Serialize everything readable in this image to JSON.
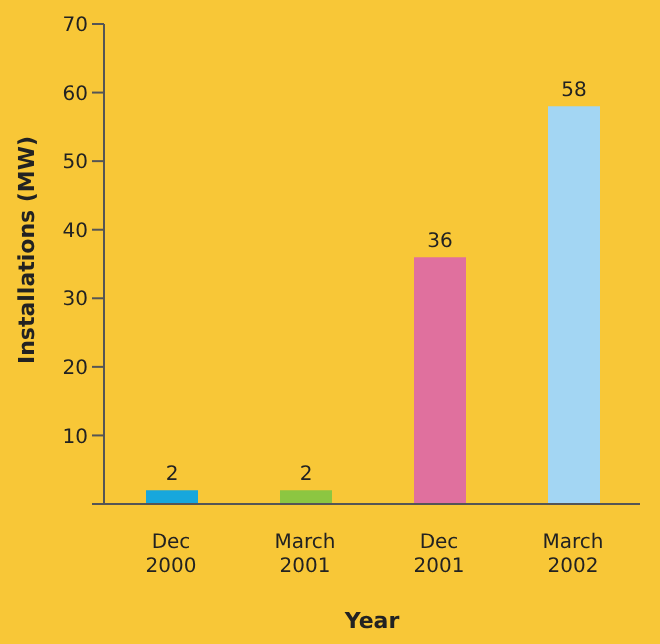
{
  "chart_data": {
    "type": "bar",
    "xlabel": "Year",
    "ylabel": "Installations (MW)",
    "categories": [
      "Dec 2000",
      "March 2001",
      "Dec 2001",
      "March 2002"
    ],
    "values": [
      2,
      2,
      36,
      58
    ],
    "colors": [
      "#17a7dc",
      "#8cc641",
      "#e0709e",
      "#a3d6f3"
    ],
    "ylim": [
      0,
      70
    ],
    "yticks": [
      {
        "value": 0,
        "label": null
      },
      10,
      20,
      30,
      40,
      50,
      60,
      70
    ],
    "data_labels": true
  }
}
